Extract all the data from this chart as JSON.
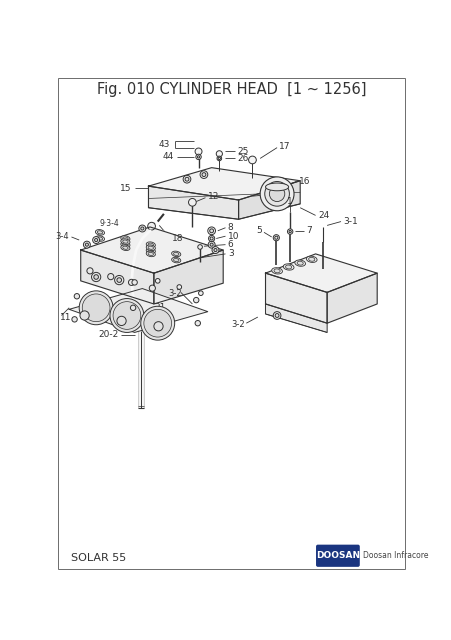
{
  "title": "Fig. 010 CYLINDER HEAD  [1 ~ 1256]",
  "title_fontsize": 10.5,
  "footer_left": "SOLAR 55",
  "background_color": "#ffffff",
  "line_color": "#333333",
  "fig_width": 4.52,
  "fig_height": 6.4,
  "dpi": 100,
  "doosan_text": "Doosan Infracore"
}
